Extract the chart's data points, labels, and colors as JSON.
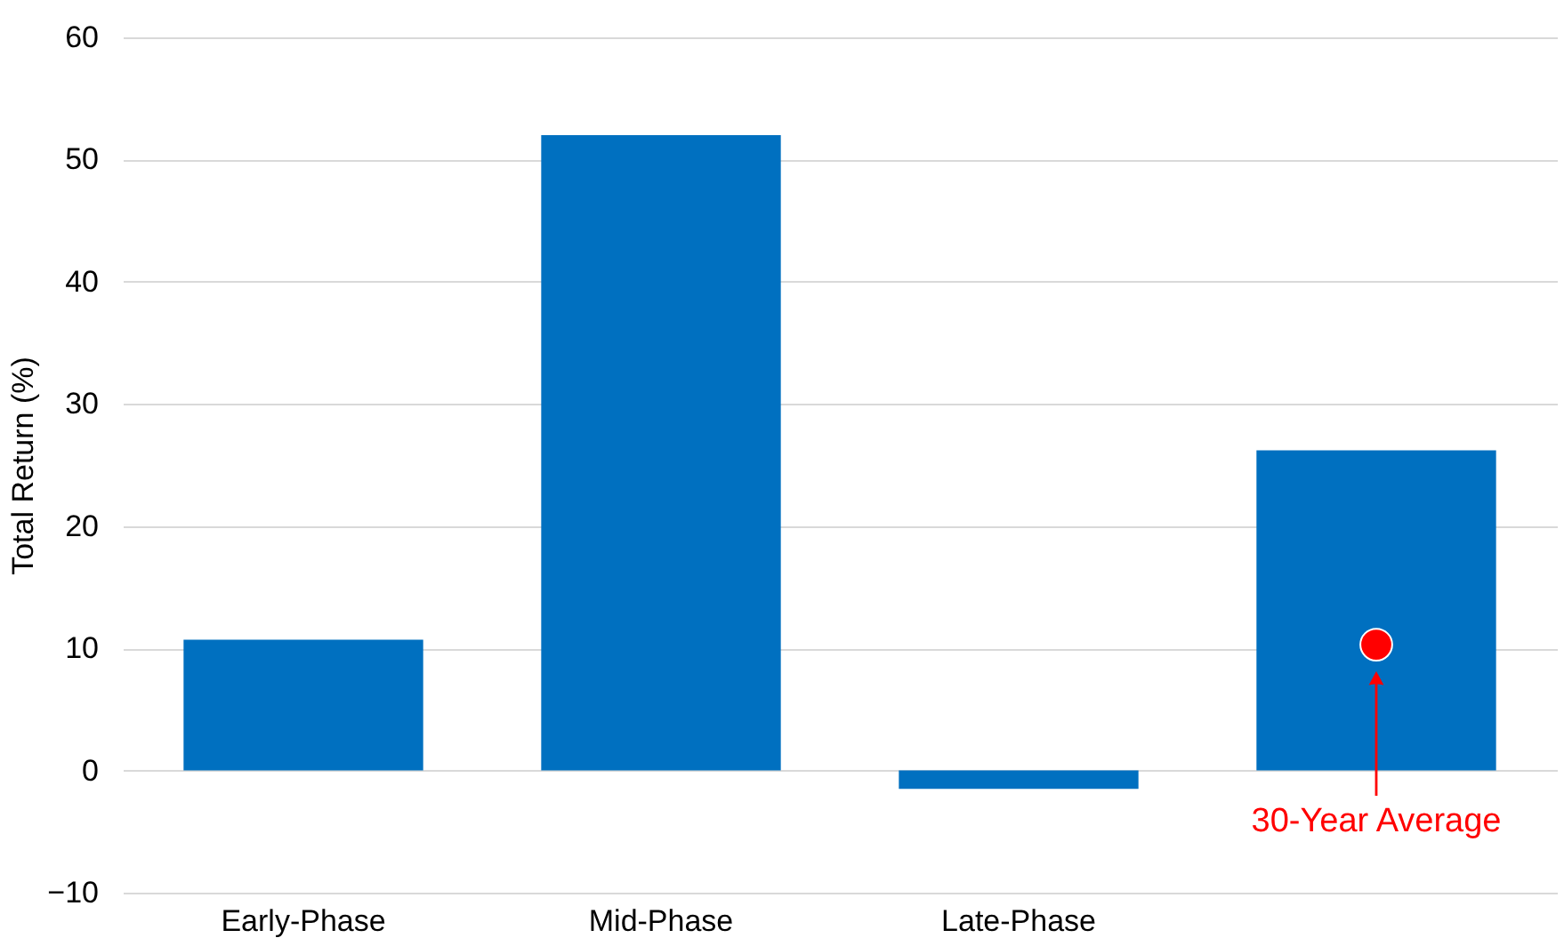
{
  "chart_data": {
    "type": "bar",
    "ylabel": "Total Return (%)",
    "categories": [
      "Early-Phase",
      "Mid-Phase",
      "Late-Phase",
      null
    ],
    "series": [
      {
        "color": "#0070c0",
        "values": [
          10.7,
          52,
          -1.5,
          26.2
        ]
      },
      {
        "type": "scatter",
        "color": "#ff0000",
        "marker": "circle",
        "values": [
          null,
          null,
          null,
          10.3
        ]
      }
    ],
    "ylim": [
      -10,
      60
    ],
    "yticks": [
      -10,
      0,
      10,
      20,
      30,
      40,
      50,
      60
    ],
    "grid": "y",
    "annotations": [
      "30-Year Average"
    ]
  }
}
